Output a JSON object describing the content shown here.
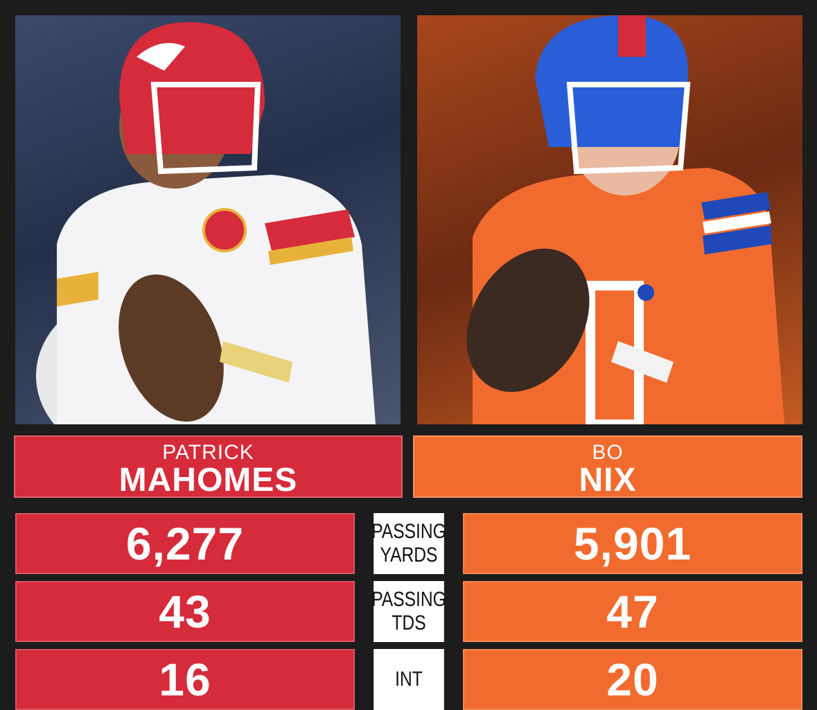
{
  "players": [
    {
      "first_name": "PATRICK",
      "last_name": "MAHOMES",
      "color": "#d52b3b",
      "photo_icon": "player-photo-mahomes"
    },
    {
      "first_name": "BO",
      "last_name": "NIX",
      "color": "#f26b2e",
      "photo_icon": "player-photo-nix"
    }
  ],
  "stats": [
    {
      "label_line1": "PASSING",
      "label_line2": "YARDS",
      "left": "6,277",
      "right": "5,901"
    },
    {
      "label_line1": "PASSING",
      "label_line2": "TDS",
      "left": "43",
      "right": "47"
    },
    {
      "label_line1": "INT",
      "label_line2": "",
      "left": "16",
      "right": "20"
    }
  ]
}
